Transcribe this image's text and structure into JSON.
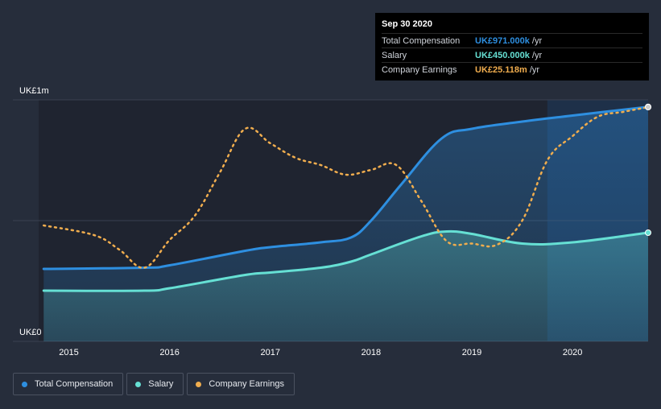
{
  "chart_data": {
    "type": "line",
    "y_axis": {
      "min_label": "UK£0",
      "max_label": "UK£1m",
      "ylim": [
        0,
        1000
      ]
    },
    "x_ticks": [
      "2015",
      "2016",
      "2017",
      "2018",
      "2019",
      "2020"
    ],
    "x_tick_values": [
      2015.0,
      2016.0,
      2017.0,
      2018.0,
      2019.0,
      2020.0
    ],
    "xlim": [
      2014.7,
      2020.75
    ],
    "grid": true,
    "highlight_range": [
      2019.75,
      2020.75
    ],
    "series": [
      {
        "name": "Total Compensation",
        "key": "total",
        "color": "#2e8fe0",
        "fill": "area",
        "points": [
          [
            2014.75,
            300
          ],
          [
            2015.75,
            305
          ],
          [
            2016.0,
            315
          ],
          [
            2016.75,
            375
          ],
          [
            2017.0,
            390
          ],
          [
            2017.5,
            410
          ],
          [
            2017.8,
            430
          ],
          [
            2018.0,
            500
          ],
          [
            2018.3,
            650
          ],
          [
            2018.7,
            840
          ],
          [
            2019.0,
            880
          ],
          [
            2019.5,
            910
          ],
          [
            2020.0,
            935
          ],
          [
            2020.75,
            971
          ]
        ]
      },
      {
        "name": "Salary",
        "key": "salary",
        "color": "#66e0d4",
        "fill": "area",
        "points": [
          [
            2014.75,
            210
          ],
          [
            2015.75,
            210
          ],
          [
            2016.0,
            220
          ],
          [
            2016.75,
            275
          ],
          [
            2017.0,
            285
          ],
          [
            2017.5,
            305
          ],
          [
            2017.8,
            330
          ],
          [
            2018.0,
            360
          ],
          [
            2018.5,
            435
          ],
          [
            2018.75,
            455
          ],
          [
            2019.0,
            445
          ],
          [
            2019.5,
            405
          ],
          [
            2020.0,
            410
          ],
          [
            2020.75,
            450
          ]
        ]
      },
      {
        "name": "Company Earnings",
        "key": "earnings",
        "color": "#f0ad4e",
        "dashed": true,
        "points": [
          [
            2014.75,
            480
          ],
          [
            2015.25,
            440
          ],
          [
            2015.5,
            380
          ],
          [
            2015.75,
            305
          ],
          [
            2016.0,
            420
          ],
          [
            2016.25,
            520
          ],
          [
            2016.5,
            700
          ],
          [
            2016.75,
            880
          ],
          [
            2017.0,
            820
          ],
          [
            2017.25,
            760
          ],
          [
            2017.5,
            730
          ],
          [
            2017.75,
            690
          ],
          [
            2018.0,
            710
          ],
          [
            2018.25,
            730
          ],
          [
            2018.5,
            580
          ],
          [
            2018.75,
            415
          ],
          [
            2019.0,
            405
          ],
          [
            2019.25,
            400
          ],
          [
            2019.5,
            500
          ],
          [
            2019.75,
            750
          ],
          [
            2020.0,
            850
          ],
          [
            2020.25,
            930
          ],
          [
            2020.5,
            950
          ],
          [
            2020.75,
            970
          ]
        ]
      }
    ]
  },
  "tooltip": {
    "title": "Sep 30 2020",
    "rows": [
      {
        "label": "Total Compensation",
        "value": "UK£971.000k",
        "unit": "/yr",
        "color": "#2e8fe0"
      },
      {
        "label": "Salary",
        "value": "UK£450.000k",
        "unit": "/yr",
        "color": "#66e0d4"
      },
      {
        "label": "Company Earnings",
        "value": "UK£25.118m",
        "unit": "/yr",
        "color": "#f0ad4e"
      }
    ]
  },
  "legend": [
    {
      "label": "Total Compensation",
      "color": "#2e8fe0"
    },
    {
      "label": "Salary",
      "color": "#66e0d4"
    },
    {
      "label": "Company Earnings",
      "color": "#f0ad4e"
    }
  ]
}
